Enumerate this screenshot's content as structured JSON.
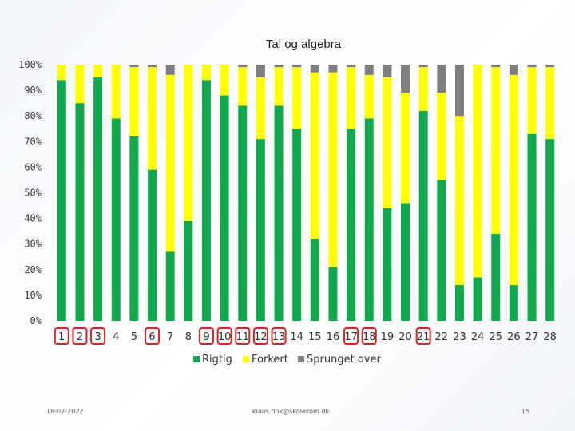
{
  "footer": {
    "date": "18-02-2022",
    "email": "klaus.fink@skolekom.dk",
    "page": "15"
  },
  "colors": {
    "Rigtig": "#11a84e",
    "Forkert": "#ffff00",
    "Sprunget over": "#7f7f7f",
    "highlight": "#e02020"
  },
  "chart_data": {
    "type": "bar",
    "stacked": true,
    "title": "Tal og algebra",
    "xlabel": "",
    "ylabel": "",
    "ylim": [
      0,
      100
    ],
    "y_ticks": [
      "0%",
      "10%",
      "20%",
      "30%",
      "40%",
      "50%",
      "60%",
      "70%",
      "80%",
      "90%",
      "100%"
    ],
    "grid": false,
    "legend_position": "bottom",
    "categories": [
      "1",
      "2",
      "3",
      "4",
      "5",
      "6",
      "7",
      "8",
      "9",
      "10",
      "11",
      "12",
      "13",
      "14",
      "15",
      "16",
      "17",
      "18",
      "19",
      "20",
      "21",
      "22",
      "23",
      "24",
      "25",
      "26",
      "27",
      "28"
    ],
    "highlighted_categories": [
      "1",
      "2",
      "3",
      "6",
      "9",
      "10",
      "11",
      "12",
      "13",
      "17",
      "18",
      "21"
    ],
    "series": [
      {
        "name": "Rigtig",
        "values": [
          94,
          85,
          95,
          79,
          72,
          59,
          27,
          39,
          94,
          88,
          84,
          71,
          84,
          75,
          32,
          21,
          75,
          79,
          44,
          46,
          82,
          55,
          14,
          17,
          34,
          14,
          73,
          71
        ]
      },
      {
        "name": "Forkert",
        "values": [
          6,
          15,
          5,
          21,
          27,
          40,
          69,
          61,
          6,
          12,
          15,
          24,
          15,
          24,
          65,
          76,
          24,
          17,
          51,
          43,
          17,
          34,
          66,
          83,
          65,
          82,
          26,
          28
        ]
      },
      {
        "name": "Sprunget over",
        "values": [
          0,
          0,
          0,
          0,
          1,
          1,
          4,
          0,
          0,
          0,
          1,
          5,
          1,
          1,
          3,
          3,
          1,
          4,
          5,
          11,
          1,
          11,
          20,
          0,
          1,
          4,
          1,
          1
        ]
      }
    ]
  }
}
